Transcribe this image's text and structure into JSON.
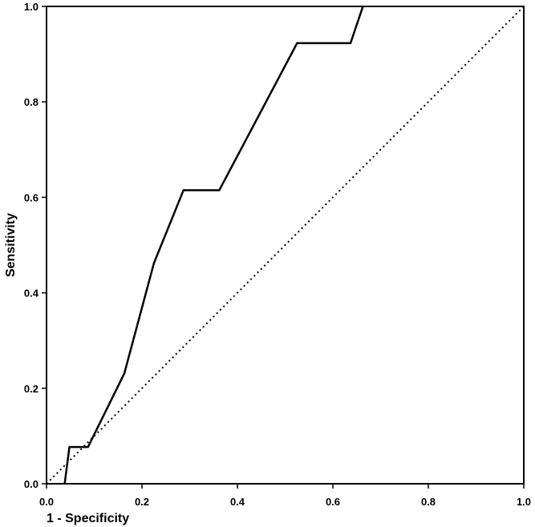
{
  "chart_data": {
    "type": "line",
    "title": "",
    "xlabel": "1 - Specificity",
    "ylabel": "Sensitivity",
    "xlim": [
      0.0,
      1.0
    ],
    "ylim": [
      0.0,
      1.0
    ],
    "x_ticks": [
      "0.0",
      "0.2",
      "0.4",
      "0.6",
      "0.8",
      "1.0"
    ],
    "y_ticks": [
      "0.0",
      "0.2",
      "0.4",
      "0.6",
      "0.8",
      "1.0"
    ],
    "grid": false,
    "legend": "none",
    "series": [
      {
        "style": "solid",
        "color": "#000000",
        "x": [
          0.038,
          0.048,
          0.087,
          0.163,
          0.225,
          0.287,
          0.362,
          0.525,
          0.637,
          0.663
        ],
        "y": [
          0.0,
          0.077,
          0.077,
          0.231,
          0.462,
          0.615,
          0.615,
          0.923,
          0.923,
          1.0
        ]
      },
      {
        "style": "dotted",
        "color": "#000000",
        "x": [
          0.0,
          1.0
        ],
        "y": [
          0.0,
          1.0
        ]
      }
    ]
  }
}
